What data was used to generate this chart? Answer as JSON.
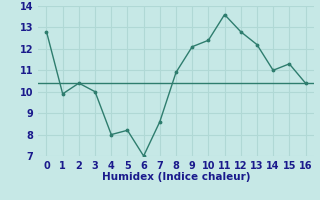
{
  "x": [
    0,
    1,
    2,
    3,
    4,
    5,
    6,
    7,
    8,
    9,
    10,
    11,
    12,
    13,
    14,
    15,
    16
  ],
  "y": [
    12.8,
    9.9,
    10.4,
    10.0,
    8.0,
    8.2,
    7.0,
    8.6,
    10.9,
    12.1,
    12.4,
    13.6,
    12.8,
    12.2,
    11.0,
    11.3,
    10.4
  ],
  "y_flat": 10.4,
  "line_color": "#2e7d6e",
  "bg_color": "#c6e8e6",
  "grid_color": "#b0d8d5",
  "xlabel": "Humidex (Indice chaleur)",
  "ylim": [
    7,
    14
  ],
  "xlim": [
    -0.5,
    16.5
  ],
  "yticks": [
    7,
    8,
    9,
    10,
    11,
    12,
    13,
    14
  ],
  "xticks": [
    0,
    1,
    2,
    3,
    4,
    5,
    6,
    7,
    8,
    9,
    10,
    11,
    12,
    13,
    14,
    15,
    16
  ],
  "xlabel_fontsize": 7.5,
  "tick_fontsize": 7,
  "tick_color": "#1a1a8c",
  "label_color": "#1a1a8c"
}
